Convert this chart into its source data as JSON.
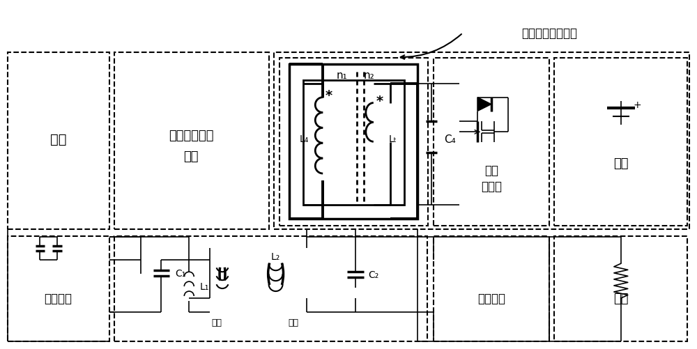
{
  "bg_color": "#ffffff",
  "line_color": "#000000",
  "fig_width": 10.0,
  "fig_height": 5.02,
  "dpi": 100,
  "labels": {
    "power_source_left": "电源",
    "comm_rx_line1": "通讯信号接收",
    "comm_rx_line2": "模块",
    "inverter": "逆变电路",
    "primary": "原边",
    "secondary": "副边",
    "C1": "C₁",
    "L1": "L₁",
    "L2": "L₂",
    "C2": "C₂",
    "n1": "n₁",
    "n2": "n₂",
    "L4": "L₄",
    "LT": "Lₜ",
    "C4": "C₄",
    "power_amp_line1": "功率",
    "power_amp_line2": "放大器",
    "power_source_right": "电源",
    "rectifier": "整流电路",
    "load": "负载",
    "comm_tx": "通讯信号发射模块"
  }
}
